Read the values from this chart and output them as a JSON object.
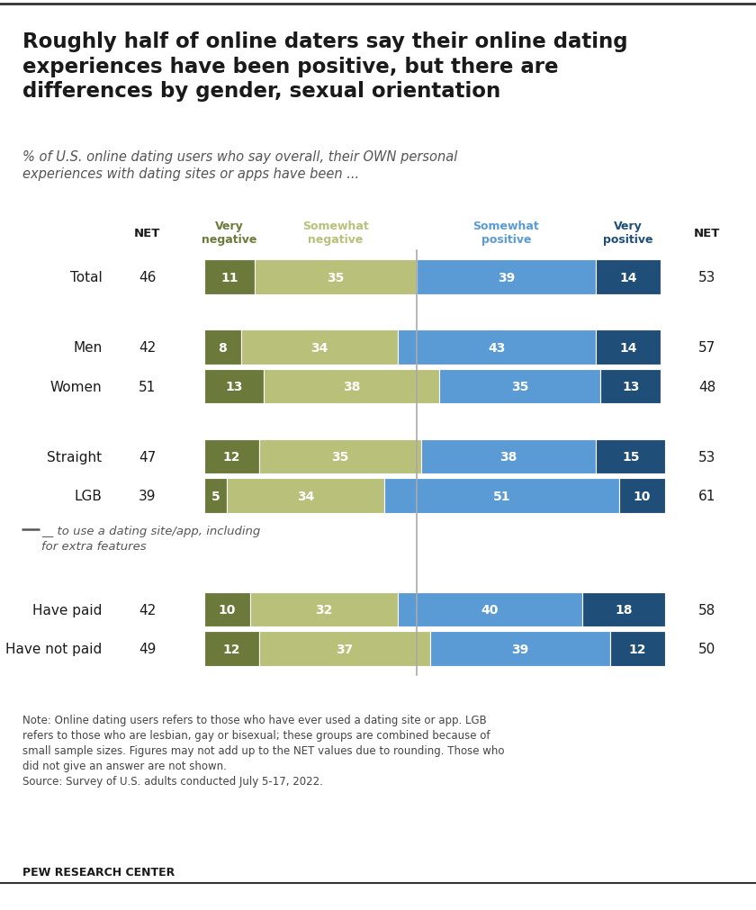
{
  "title": "Roughly half of online daters say their online dating\nexperiences have been positive, but there are\ndifferences by gender, sexual orientation",
  "subtitle": "% of U.S. online dating users who say overall, their OWN personal\nexperiences with dating sites or apps have been ...",
  "categories": [
    "Total",
    "Men",
    "Women",
    "Straight",
    "LGB",
    "Have paid",
    "Have not paid"
  ],
  "net_left": [
    46,
    42,
    51,
    47,
    39,
    42,
    49
  ],
  "net_right": [
    53,
    57,
    48,
    53,
    61,
    58,
    50
  ],
  "very_negative": [
    11,
    8,
    13,
    12,
    5,
    10,
    12
  ],
  "somewhat_negative": [
    35,
    34,
    38,
    35,
    34,
    32,
    37
  ],
  "somewhat_positive": [
    39,
    43,
    35,
    38,
    51,
    40,
    39
  ],
  "very_positive": [
    14,
    14,
    13,
    15,
    10,
    18,
    12
  ],
  "color_very_negative": "#6b7a3a",
  "color_somewhat_negative": "#b8c07a",
  "color_somewhat_positive": "#5b9bd5",
  "color_very_positive": "#1f4e79",
  "note": "Note: Online dating users refers to those who have ever used a dating site or app. LGB\nrefers to those who are lesbian, gay or bisexual; these groups are combined because of\nsmall sample sizes. Figures may not add up to the NET values due to rounding. Those who\ndid not give an answer are not shown.\nSource: Survey of U.S. adults conducted July 5-17, 2022.",
  "source_bold": "PEW RESEARCH CENTER",
  "col_headers": [
    "Very\nnegative",
    "Somewhat\nnegative",
    "Somewhat\npositive",
    "Very\npositive"
  ],
  "col_header_colors": [
    "#6b7a3a",
    "#b8c07a",
    "#5b9bd5",
    "#1f4e79"
  ],
  "paid_annotation": "__ to use a dating site/app, including\nfor extra features"
}
